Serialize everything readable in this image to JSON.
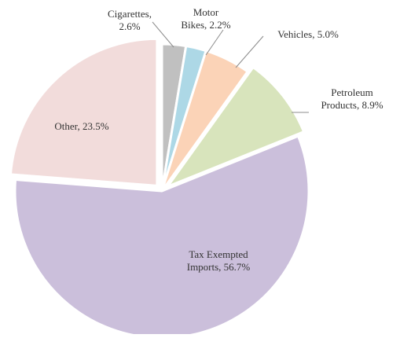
{
  "chart_data": {
    "type": "pie",
    "title": "",
    "start_angle_deg": 0,
    "direction": "clockwise",
    "slices": [
      {
        "label": "Cigarettes",
        "value": 2.6,
        "value_label": "2.6%",
        "color": "#c0c0c0",
        "exploded": false
      },
      {
        "label": "Motor Bikes",
        "value": 2.2,
        "value_label": "2.2%",
        "color": "#add8e6",
        "exploded": false
      },
      {
        "label": "Vehicles",
        "value": 5.0,
        "value_label": "5.0%",
        "color": "#fbd3b7",
        "exploded": false
      },
      {
        "label": "Petroleum Products",
        "value": 8.9,
        "value_label": "8.9%",
        "color": "#d8e4bc",
        "exploded": true
      },
      {
        "label": "Tax Exempted Imports",
        "value": 56.7,
        "value_label": "56.7%",
        "color": "#cbbfdb",
        "exploded": false
      },
      {
        "label": "Other",
        "value": 23.5,
        "value_label": "23.5%",
        "color": "#f2dcdb",
        "exploded": true
      }
    ],
    "data_labels": [
      {
        "lines": [
          "Cigarettes,",
          "2.6%"
        ]
      },
      {
        "lines": [
          "Motor",
          "Bikes, 2.2%"
        ]
      },
      {
        "lines": [
          "Vehicles, 5.0%"
        ]
      },
      {
        "lines": [
          "Petroleum",
          "Products, 8.9%"
        ]
      },
      {
        "lines": [
          "Tax Exempted",
          "Imports, 56.7%"
        ]
      },
      {
        "lines": [
          "Other, 23.5%"
        ]
      }
    ]
  }
}
